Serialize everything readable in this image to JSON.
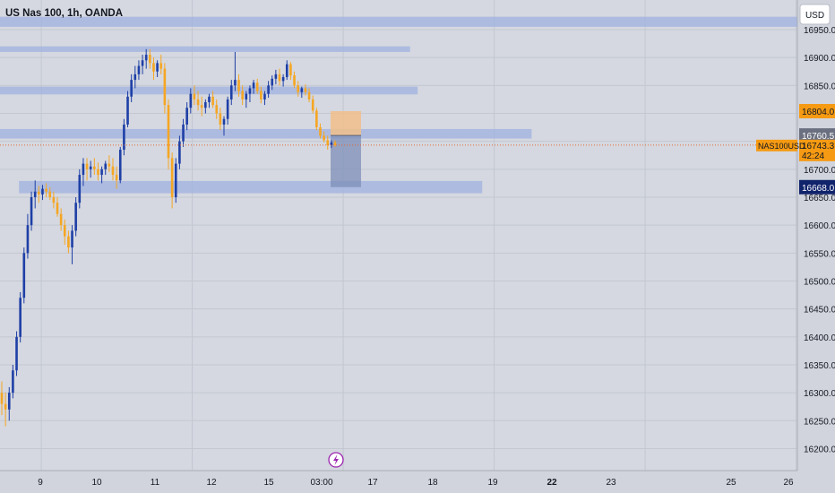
{
  "header": {
    "symbol_title": "US Nas 100, 1h, OANDA",
    "currency_button": "USD"
  },
  "colors": {
    "background": "#d1d4dc",
    "plot_background": "#d5d8e0",
    "grid": "#c3c7d0",
    "bull_candle": "#1e3fa6",
    "bear_candle": "#f5a623",
    "zone": "#9fb2e0",
    "zone_alpha": 0.75,
    "stop_zone": "#f1c08a",
    "target_zone": "#7e8fb8",
    "price_line": "#e6672f",
    "label_orange": "#f59a12",
    "label_gray": "#6b7080",
    "label_navy": "#10236b",
    "text": "#131722",
    "flash_icon": "#9c27b0"
  },
  "y_axis": {
    "ticks": [
      "16950.0",
      "16900.0",
      "16850.0",
      "16800.0",
      "16750.0",
      "16700.0",
      "16650.0",
      "16600.0",
      "16550.0",
      "16500.0",
      "16450.0",
      "16400.0",
      "16350.0",
      "16300.0",
      "16250.0",
      "16200.0"
    ],
    "tick_values": [
      16950,
      16900,
      16850,
      16800,
      16750,
      16700,
      16650,
      16600,
      16550,
      16500,
      16450,
      16400,
      16350,
      16300,
      16250,
      16200
    ]
  },
  "x_axis": {
    "labels": [
      "9",
      "10",
      "11",
      "12",
      "15",
      "03:00",
      "17",
      "18",
      "19",
      "22",
      "23",
      "25",
      "26"
    ],
    "label_index": [
      4,
      20,
      36,
      52,
      68,
      84,
      100,
      116,
      132,
      148,
      164,
      180,
      196
    ],
    "bold": [
      false,
      false,
      false,
      false,
      false,
      false,
      false,
      false,
      false,
      true,
      false,
      false,
      false
    ]
  },
  "price_labels": {
    "stop_price": "16804.0",
    "entry_price": "16760.5",
    "symbol_tag": "NAS100USD",
    "last_price": "16743.3",
    "countdown": "42:24",
    "target_price": "16668.0"
  },
  "chart_data": {
    "type": "candlestick",
    "title": "US Nas 100, 1h, OANDA",
    "ylim": [
      16185,
      16975
    ],
    "x_index_range": [
      0,
      210
    ],
    "current_price": 16743.3,
    "zones": [
      {
        "start": 0,
        "end": 210,
        "low": 16955,
        "high": 16973
      },
      {
        "start": 0,
        "end": 108,
        "low": 16910,
        "high": 16920
      },
      {
        "start": 0,
        "end": 110,
        "low": 16834,
        "high": 16848
      },
      {
        "start": 0,
        "end": 140,
        "low": 16755,
        "high": 16772
      },
      {
        "start": 5,
        "end": 127,
        "low": 16657,
        "high": 16679
      }
    ],
    "position": {
      "type": "short",
      "start": 90,
      "end": 98,
      "entry": 16760.5,
      "stop": 16804.0,
      "target": 16668.0
    },
    "candles": [
      [
        16300,
        16320,
        16260,
        16280
      ],
      [
        16280,
        16300,
        16240,
        16270
      ],
      [
        16270,
        16310,
        16250,
        16300
      ],
      [
        16300,
        16350,
        16290,
        16340
      ],
      [
        16340,
        16410,
        16330,
        16400
      ],
      [
        16400,
        16480,
        16390,
        16470
      ],
      [
        16470,
        16560,
        16460,
        16550
      ],
      [
        16550,
        16620,
        16540,
        16600
      ],
      [
        16600,
        16660,
        16590,
        16650
      ],
      [
        16650,
        16680,
        16630,
        16660
      ],
      [
        16660,
        16670,
        16640,
        16655
      ],
      [
        16655,
        16672,
        16645,
        16665
      ],
      [
        16665,
        16675,
        16650,
        16660
      ],
      [
        16660,
        16668,
        16645,
        16650
      ],
      [
        16650,
        16660,
        16630,
        16640
      ],
      [
        16640,
        16650,
        16615,
        16620
      ],
      [
        16620,
        16630,
        16590,
        16600
      ],
      [
        16600,
        16610,
        16565,
        16580
      ],
      [
        16580,
        16590,
        16550,
        16560
      ],
      [
        16560,
        16600,
        16530,
        16590
      ],
      [
        16590,
        16650,
        16580,
        16640
      ],
      [
        16640,
        16700,
        16630,
        16690
      ],
      [
        16690,
        16720,
        16670,
        16710
      ],
      [
        16710,
        16720,
        16680,
        16700
      ],
      [
        16700,
        16715,
        16685,
        16705
      ],
      [
        16705,
        16720,
        16690,
        16700
      ],
      [
        16700,
        16712,
        16680,
        16690
      ],
      [
        16690,
        16705,
        16675,
        16700
      ],
      [
        16700,
        16715,
        16690,
        16710
      ],
      [
        16710,
        16725,
        16695,
        16705
      ],
      [
        16705,
        16720,
        16680,
        16690
      ],
      [
        16690,
        16705,
        16665,
        16680
      ],
      [
        16680,
        16740,
        16675,
        16735
      ],
      [
        16735,
        16790,
        16725,
        16780
      ],
      [
        16780,
        16840,
        16775,
        16830
      ],
      [
        16830,
        16870,
        16820,
        16860
      ],
      [
        16860,
        16885,
        16845,
        16870
      ],
      [
        16870,
        16895,
        16860,
        16885
      ],
      [
        16885,
        16905,
        16870,
        16895
      ],
      [
        16895,
        16915,
        16880,
        16905
      ],
      [
        16905,
        16915,
        16880,
        16890
      ],
      [
        16890,
        16900,
        16860,
        16875
      ],
      [
        16875,
        16895,
        16865,
        16890
      ],
      [
        16890,
        16905,
        16870,
        16880
      ],
      [
        16880,
        16890,
        16800,
        16815
      ],
      [
        16815,
        16825,
        16700,
        16720
      ],
      [
        16720,
        16730,
        16630,
        16650
      ],
      [
        16650,
        16720,
        16640,
        16710
      ],
      [
        16710,
        16760,
        16700,
        16750
      ],
      [
        16750,
        16790,
        16740,
        16780
      ],
      [
        16780,
        16820,
        16770,
        16810
      ],
      [
        16810,
        16845,
        16800,
        16835
      ],
      [
        16835,
        16850,
        16815,
        16825
      ],
      [
        16825,
        16840,
        16805,
        16815
      ],
      [
        16815,
        16830,
        16795,
        16810
      ],
      [
        16810,
        16825,
        16800,
        16820
      ],
      [
        16820,
        16835,
        16810,
        16830
      ],
      [
        16830,
        16840,
        16810,
        16815
      ],
      [
        16815,
        16825,
        16790,
        16800
      ],
      [
        16800,
        16810,
        16770,
        16780
      ],
      [
        16780,
        16795,
        16760,
        16790
      ],
      [
        16790,
        16830,
        16780,
        16825
      ],
      [
        16825,
        16860,
        16815,
        16850
      ],
      [
        16850,
        16910,
        16840,
        16860
      ],
      [
        16860,
        16870,
        16830,
        16840
      ],
      [
        16840,
        16850,
        16815,
        16825
      ],
      [
        16825,
        16840,
        16810,
        16835
      ],
      [
        16835,
        16850,
        16820,
        16845
      ],
      [
        16845,
        16860,
        16835,
        16855
      ],
      [
        16855,
        16862,
        16835,
        16840
      ],
      [
        16840,
        16848,
        16818,
        16825
      ],
      [
        16825,
        16840,
        16815,
        16835
      ],
      [
        16835,
        16858,
        16828,
        16850
      ],
      [
        16850,
        16868,
        16842,
        16862
      ],
      [
        16862,
        16878,
        16852,
        16870
      ],
      [
        16870,
        16880,
        16850,
        16858
      ],
      [
        16858,
        16870,
        16848,
        16865
      ],
      [
        16865,
        16895,
        16860,
        16888
      ],
      [
        16888,
        16892,
        16860,
        16868
      ],
      [
        16868,
        16875,
        16845,
        16850
      ],
      [
        16850,
        16858,
        16830,
        16838
      ],
      [
        16838,
        16848,
        16828,
        16845
      ],
      [
        16845,
        16852,
        16832,
        16838
      ],
      [
        16838,
        16845,
        16820,
        16825
      ],
      [
        16825,
        16832,
        16800,
        16805
      ],
      [
        16805,
        16810,
        16770,
        16775
      ],
      [
        16775,
        16782,
        16755,
        16760
      ],
      [
        16760,
        16768,
        16748,
        16752
      ],
      [
        16752,
        16760,
        16735,
        16743
      ],
      [
        16743,
        16752,
        16738,
        16748
      ],
      [
        16748,
        16752,
        16740,
        16743
      ]
    ]
  }
}
